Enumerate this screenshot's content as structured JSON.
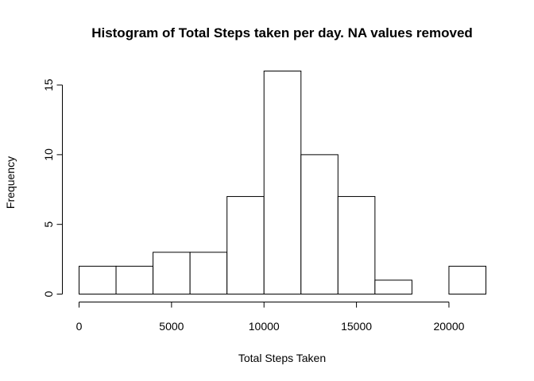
{
  "chart_data": {
    "type": "bar",
    "title": "Histogram of Total Steps taken per day. NA values removed",
    "xlabel": "Total Steps Taken",
    "ylabel": "Frequency",
    "bins": [
      {
        "start": 0,
        "end": 2000,
        "count": 2
      },
      {
        "start": 2000,
        "end": 4000,
        "count": 2
      },
      {
        "start": 4000,
        "end": 6000,
        "count": 3
      },
      {
        "start": 6000,
        "end": 8000,
        "count": 3
      },
      {
        "start": 8000,
        "end": 10000,
        "count": 7
      },
      {
        "start": 10000,
        "end": 12000,
        "count": 16
      },
      {
        "start": 12000,
        "end": 14000,
        "count": 10
      },
      {
        "start": 14000,
        "end": 16000,
        "count": 7
      },
      {
        "start": 16000,
        "end": 18000,
        "count": 1
      },
      {
        "start": 18000,
        "end": 20000,
        "count": 0
      },
      {
        "start": 20000,
        "end": 22000,
        "count": 2
      }
    ],
    "xlim": [
      0,
      22000
    ],
    "ylim": [
      0,
      16
    ],
    "x_ticks": [
      0,
      5000,
      10000,
      15000,
      20000
    ],
    "y_ticks": [
      0,
      5,
      10,
      15
    ],
    "grid": false,
    "legend": "none",
    "bar_fill": "#ffffff",
    "bar_stroke": "#000000"
  }
}
